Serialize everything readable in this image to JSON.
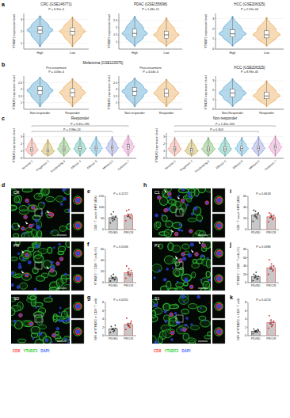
{
  "chart_data": [
    {
      "type": "violin",
      "title": "CRC (GSE146771)",
      "ylabel": "YTHDF2 expression level",
      "categories": [
        "High",
        "Low"
      ],
      "colors": [
        "#2f8fc7",
        "#e8962e"
      ],
      "ylim": [
        0.5,
        3.5
      ],
      "yticks": [
        1,
        2,
        3
      ],
      "grid": true,
      "annotations": [
        {
          "text": "P = 6.31e-4"
        }
      ],
      "stats": {
        "min": [
          0.7,
          0.7
        ],
        "q1": [
          1.8,
          1.7
        ],
        "median": [
          2.1,
          2.0
        ],
        "q3": [
          2.4,
          2.3
        ],
        "max": [
          3.3,
          3.2
        ]
      }
    },
    {
      "type": "violin",
      "title": "PDAC (GSE155698)",
      "ylabel": "YTHDF2 expression level",
      "categories": [
        "High",
        "Low"
      ],
      "colors": [
        "#2f8fc7",
        "#e8962e"
      ],
      "ylim": [
        0.5,
        3
      ],
      "yticks": [
        1,
        1.5,
        2,
        2.5
      ],
      "grid": true,
      "annotations": [
        {
          "text": "P = 1.08e-11"
        }
      ],
      "stats": {
        "min": [
          0.7,
          0.7
        ],
        "q1": [
          1.35,
          1.25
        ],
        "median": [
          1.6,
          1.5
        ],
        "q3": [
          1.9,
          1.75
        ],
        "max": [
          2.8,
          2.7
        ]
      }
    },
    {
      "type": "violin",
      "title": "HCC (GSE206325)",
      "ylabel": "YTHDF2 expression level",
      "categories": [
        "High",
        "Low"
      ],
      "colors": [
        "#2f8fc7",
        "#e8962e"
      ],
      "ylim": [
        0,
        3.5
      ],
      "yticks": [
        0,
        1,
        2,
        3
      ],
      "grid": true,
      "annotations": [
        {
          "text": "P = 2.59e-04"
        }
      ],
      "stats": {
        "min": [
          0.3,
          0.3
        ],
        "q1": [
          1.2,
          1.1
        ],
        "median": [
          1.5,
          1.4
        ],
        "q3": [
          1.9,
          1.8
        ],
        "max": [
          3.2,
          3.1
        ]
      }
    },
    {
      "type": "violin",
      "title": "Melanoma (GSE120575)",
      "subtitle": "Pre-treatment",
      "ylabel": "YTHDF2 expression level",
      "categories": [
        "Non-responder",
        "Responder"
      ],
      "colors": [
        "#2f8fc7",
        "#e8962e"
      ],
      "ylim": [
        0.5,
        3
      ],
      "yticks": [
        1,
        1.5,
        2,
        2.5
      ],
      "grid": true,
      "annotations": [
        {
          "text": "P = 4.06e-4"
        }
      ],
      "stats": {
        "min": [
          0.7,
          0.7
        ],
        "q1": [
          1.6,
          1.45
        ],
        "median": [
          1.9,
          1.75
        ],
        "q3": [
          2.2,
          2.05
        ],
        "max": [
          2.9,
          2.8
        ]
      }
    },
    {
      "type": "violin",
      "subtitle": "Post-treatment",
      "ylabel": "YTHDF2 expression level",
      "categories": [
        "Non-responder",
        "Responder"
      ],
      "colors": [
        "#2f8fc7",
        "#e8962e"
      ],
      "ylim": [
        0.5,
        3
      ],
      "yticks": [
        1,
        1.5,
        2,
        2.5
      ],
      "grid": true,
      "annotations": [
        {
          "text": "P = 4.04e-4"
        }
      ],
      "stats": {
        "min": [
          0.7,
          0.7
        ],
        "q1": [
          1.55,
          1.45
        ],
        "median": [
          1.85,
          1.7
        ],
        "q3": [
          2.15,
          2.0
        ],
        "max": [
          2.85,
          2.75
        ]
      }
    },
    {
      "type": "violin",
      "title": "HCC (GSE206325)",
      "ylabel": "YTHDF2 expression level",
      "categories": [
        "Non-Responder",
        "Responder"
      ],
      "colors": [
        "#2f8fc7",
        "#e8962e"
      ],
      "ylim": [
        0,
        3.5
      ],
      "yticks": [
        0,
        1,
        2,
        3
      ],
      "grid": true,
      "annotations": [
        {
          "text": "P = 8.98e-45"
        }
      ],
      "stats": {
        "min": [
          0.3,
          0.3
        ],
        "q1": [
          1.3,
          1.1
        ],
        "median": [
          1.7,
          1.4
        ],
        "q3": [
          2.1,
          1.8
        ],
        "max": [
          3.2,
          3.0
        ]
      }
    },
    {
      "type": "violin",
      "title": "Responder",
      "ylabel": "YTHDF2 expression level",
      "categories": [
        "Terminal 1",
        "Progenitor 2",
        "Proliferating 3",
        "Effector 4",
        "Effector 5",
        "Memory 6",
        "Cytotoxic 7"
      ],
      "colors": [
        "#e8836f",
        "#b89a1e",
        "#5aab46",
        "#35b09a",
        "#3fa6d6",
        "#7b86d9",
        "#e27cc0"
      ],
      "ylim": [
        0,
        3.5
      ],
      "yticks": [
        0,
        1,
        2,
        3
      ],
      "grid": true,
      "annotations": [
        {
          "text": "P = 3.41e-281",
          "from": "Terminal 1",
          "to": "Cytotoxic 7"
        },
        {
          "text": "P = 3.98e-24",
          "from": "Terminal 1",
          "to": "Memory 6"
        }
      ],
      "stats": {
        "min": [
          0.3,
          0.3,
          0.3,
          0.3,
          0.3,
          0.3,
          0.3
        ],
        "q1": [
          0.9,
          0.7,
          1.0,
          1.05,
          1.1,
          1.15,
          1.3
        ],
        "median": [
          1.2,
          1.0,
          1.3,
          1.35,
          1.4,
          1.45,
          1.6
        ],
        "q3": [
          1.5,
          1.3,
          1.6,
          1.65,
          1.7,
          1.75,
          1.9
        ],
        "max": [
          2.8,
          2.6,
          2.9,
          2.9,
          3.0,
          3.0,
          3.2
        ]
      }
    },
    {
      "type": "violin",
      "title": "Non-responder",
      "ylabel": "YTHDF2 expression level",
      "categories": [
        "Terminal 1",
        "Progenitor 2",
        "Proliferating 3",
        "Effector 4",
        "Effector 5",
        "Memory 6",
        "Cytotoxic 7"
      ],
      "colors": [
        "#e8836f",
        "#b89a1e",
        "#5aab46",
        "#35b09a",
        "#3fa6d6",
        "#7b86d9",
        "#e27cc0"
      ],
      "ylim": [
        0,
        3.5
      ],
      "yticks": [
        0,
        1,
        2,
        3
      ],
      "grid": true,
      "annotations": [
        {
          "text": "P = 1.45e-163",
          "from": "Terminal 1",
          "to": "Cytotoxic 7"
        },
        {
          "text": "P = 0.303",
          "from": "Terminal 1",
          "to": "Memory 6"
        }
      ],
      "stats": {
        "min": [
          0.3,
          0.3,
          0.3,
          0.3,
          0.3,
          0.3,
          0.3
        ],
        "q1": [
          1.0,
          0.75,
          1.0,
          1.0,
          1.05,
          1.1,
          1.25
        ],
        "median": [
          1.3,
          1.05,
          1.3,
          1.3,
          1.35,
          1.4,
          1.55
        ],
        "q3": [
          1.6,
          1.35,
          1.6,
          1.6,
          1.65,
          1.7,
          1.85
        ],
        "max": [
          2.9,
          2.6,
          2.9,
          2.9,
          2.9,
          3.0,
          3.1
        ]
      }
    },
    {
      "type": "bar",
      "ylabel": "CD8⁺ T count / HPF (40X)",
      "categories": [
        "PD/SD",
        "PR/CR"
      ],
      "colors": [
        "#333333",
        "#d62728"
      ],
      "ylim": [
        0,
        150
      ],
      "yticks": [
        0,
        50,
        100,
        150
      ],
      "annotations": [
        {
          "text": "P = 0.2272"
        }
      ],
      "values": [
        54,
        64
      ],
      "errors": [
        6,
        6
      ],
      "points": [
        [
          30,
          45,
          50,
          60,
          70,
          80,
          55,
          40
        ],
        [
          40,
          55,
          60,
          70,
          85,
          90,
          50,
          65
        ]
      ]
    },
    {
      "type": "bar",
      "ylabel": "YTHDF2⁺ / CD8⁺ T cells (%)",
      "categories": [
        "PD/SD",
        "PR/CR"
      ],
      "colors": [
        "#333333",
        "#d62728"
      ],
      "ylim": [
        0,
        60
      ],
      "yticks": [
        0,
        20,
        40,
        60
      ],
      "annotations": [
        {
          "text": "P = 0.0106"
        }
      ],
      "values": [
        8.5,
        18
      ],
      "errors": [
        1.4,
        2.6
      ],
      "points": [
        [
          3,
          5,
          8,
          10,
          12,
          15,
          6,
          9
        ],
        [
          8,
          12,
          18,
          22,
          30,
          25,
          15,
          14
        ]
      ]
    },
    {
      "type": "bar",
      "ylabel": "MFI of YTHDF2 in CD8⁺ T cells",
      "categories": [
        "PD/SD",
        "PR/CR"
      ],
      "colors": [
        "#333333",
        "#d62728"
      ],
      "ylim": [
        0,
        8
      ],
      "yticks": [
        0,
        2,
        4,
        6,
        8
      ],
      "annotations": [
        {
          "text": "P = 0.0255"
        }
      ],
      "values": [
        1.6,
        2.7
      ],
      "errors": [
        0.2,
        0.3
      ],
      "points": [
        [
          0.8,
          1.2,
          1.5,
          1.8,
          2.2,
          1.0,
          2.5,
          1.6
        ],
        [
          1.5,
          2.0,
          2.8,
          3.5,
          4.2,
          2.2,
          3.0,
          2.4
        ]
      ]
    },
    {
      "type": "bar",
      "ylabel": "CD8⁺ T count / HPF (40X)",
      "categories": [
        "PD/SD",
        "PR/CR"
      ],
      "colors": [
        "#333333",
        "#d62728"
      ],
      "ylim": [
        0,
        60
      ],
      "yticks": [
        0,
        20,
        40,
        60
      ],
      "annotations": [
        {
          "text": "P = 0.6618"
        }
      ],
      "values": [
        26,
        23
      ],
      "errors": [
        2.5,
        2
      ],
      "points": [
        [
          15,
          20,
          25,
          30,
          35,
          22,
          28,
          33
        ],
        [
          14,
          18,
          22,
          26,
          30,
          24,
          20,
          28
        ]
      ]
    },
    {
      "type": "bar",
      "ylabel": "YTHDF2⁺ / CD8⁺ T cells (%)",
      "categories": [
        "PD/SD",
        "PR/CR"
      ],
      "colors": [
        "#333333",
        "#d62728"
      ],
      "ylim": [
        0,
        80
      ],
      "yticks": [
        0,
        20,
        40,
        60,
        80
      ],
      "annotations": [
        {
          "text": "P = 0.0386"
        }
      ],
      "values": [
        14,
        36
      ],
      "errors": [
        2.4,
        3.8
      ],
      "points": [
        [
          5,
          8,
          12,
          15,
          20,
          25,
          10,
          17
        ],
        [
          20,
          28,
          35,
          40,
          55,
          45,
          30,
          35
        ]
      ]
    },
    {
      "type": "bar",
      "ylabel": "MFI of YTHDF2 in CD8⁺ T cells",
      "categories": [
        "PD/SD",
        "PR/CR"
      ],
      "colors": [
        "#333333",
        "#d62728"
      ],
      "ylim": [
        0,
        8
      ],
      "yticks": [
        0,
        2,
        4,
        6,
        8
      ],
      "annotations": [
        {
          "text": "P = 0.0224"
        }
      ],
      "values": [
        1.1,
        3.1
      ],
      "errors": [
        0.14,
        0.35
      ],
      "points": [
        [
          0.5,
          0.8,
          1.0,
          1.3,
          1.6,
          1.2,
          1.5,
          0.9
        ],
        [
          1.8,
          2.5,
          3.0,
          3.5,
          4.8,
          2.2,
          3.2,
          3.8
        ]
      ]
    }
  ],
  "figure": {
    "panel_labels": [
      "a",
      "b",
      "c",
      "d",
      "e",
      "f",
      "g",
      "h",
      "i",
      "j",
      "k"
    ],
    "images": [
      {
        "label": "CR"
      },
      {
        "label": "PR"
      },
      {
        "label": "SD"
      },
      {
        "label": "C1"
      },
      {
        "label": "P1"
      },
      {
        "label": "S1"
      }
    ],
    "legend": [
      {
        "text": "CD8",
        "color": "#ff3b3b"
      },
      {
        "text": "YTHDF2",
        "color": "#33cc33"
      },
      {
        "text": "DAPI",
        "color": "#4a66ff"
      }
    ]
  }
}
